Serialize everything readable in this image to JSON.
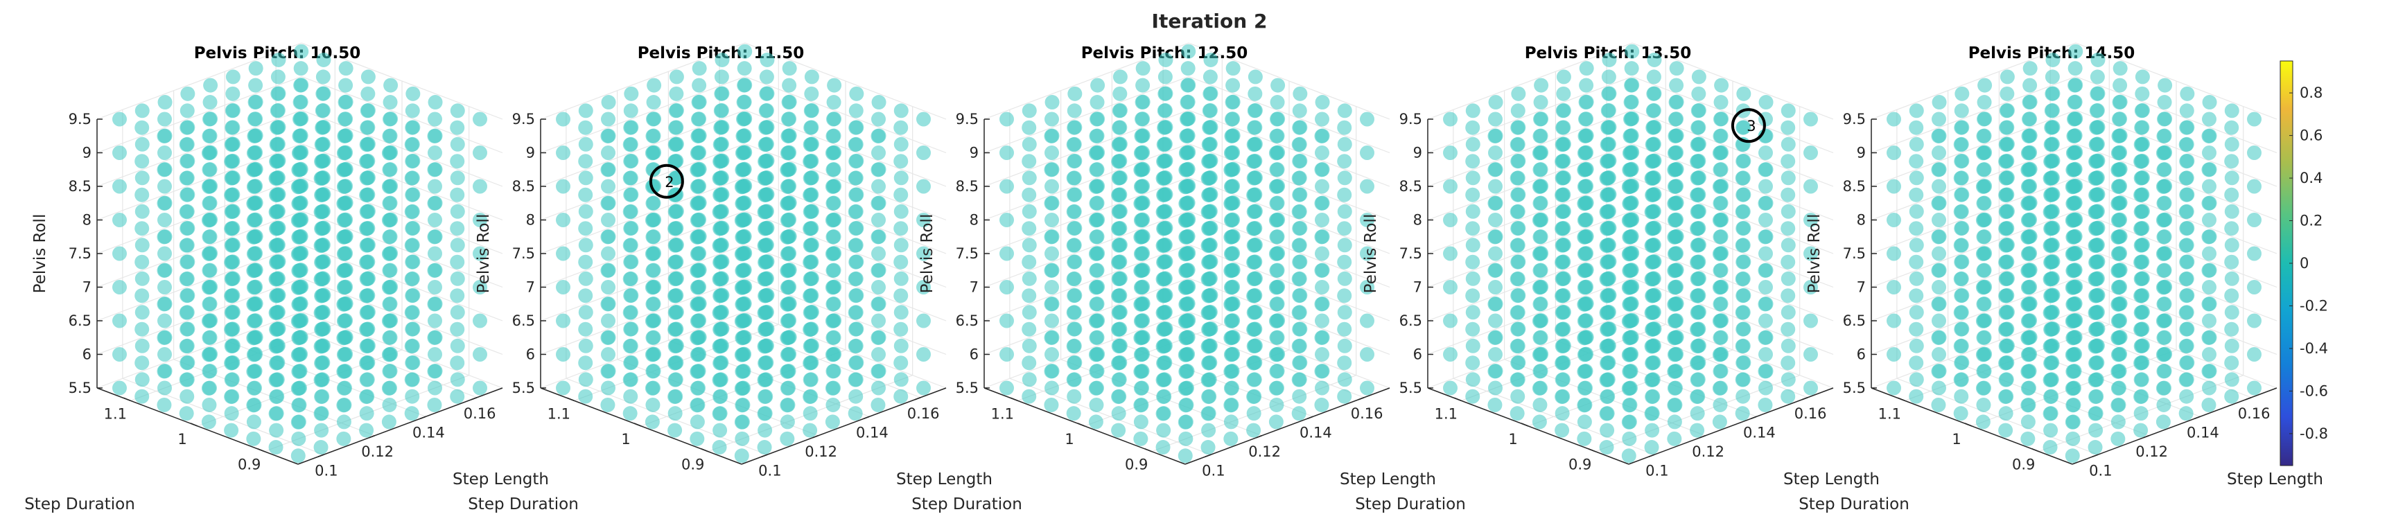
{
  "figure_title": "Iteration 2",
  "chart_data": {
    "type": "scatter3d",
    "axes": {
      "xlabel": "Step Length",
      "ylabel": "Step Duration",
      "zlabel": "Pelvis Roll",
      "xticks": [
        "0.1",
        "0.12",
        "0.14",
        "0.16"
      ],
      "yticks": [
        "0.9",
        "1",
        "1.1"
      ],
      "zticks": [
        "5.5",
        "6",
        "6.5",
        "7",
        "7.5",
        "8",
        "8.5",
        "9",
        "9.5"
      ],
      "xlim": [
        0.09,
        0.17
      ],
      "ylim": [
        0.85,
        1.15
      ],
      "zlim": [
        5.5,
        9.5
      ]
    },
    "grid": true,
    "grid_points": {
      "step_length_count": 9,
      "step_duration_count": 9,
      "pelvis_roll_count": 9
    },
    "panels": [
      {
        "title": "Pelvis Pitch: 10.50",
        "pelvis_pitch": 10.5,
        "marker": null
      },
      {
        "title": "Pelvis Pitch: 11.50",
        "pelvis_pitch": 11.5,
        "marker": {
          "label": "2",
          "step_length": 0.1,
          "step_duration": 1.0,
          "pelvis_roll": 9.0
        }
      },
      {
        "title": "Pelvis Pitch: 12.50",
        "pelvis_pitch": 12.5,
        "marker": null
      },
      {
        "title": "Pelvis Pitch: 13.50",
        "pelvis_pitch": 13.5,
        "marker": {
          "label": "3",
          "step_length": 0.15,
          "step_duration": 0.9,
          "pelvis_roll": 9.5
        }
      },
      {
        "title": "Pelvis Pitch: 14.50",
        "pelvis_pitch": 14.5,
        "marker": null
      }
    ],
    "colorbar": {
      "range": [
        -0.95,
        0.95
      ],
      "ticks": [
        "0.8",
        "0.6",
        "0.4",
        "0.2",
        "0",
        "-0.2",
        "-0.4",
        "-0.6",
        "-0.8"
      ],
      "colormap": "parula",
      "placement": "right"
    },
    "point_color": "#40c9c2"
  }
}
